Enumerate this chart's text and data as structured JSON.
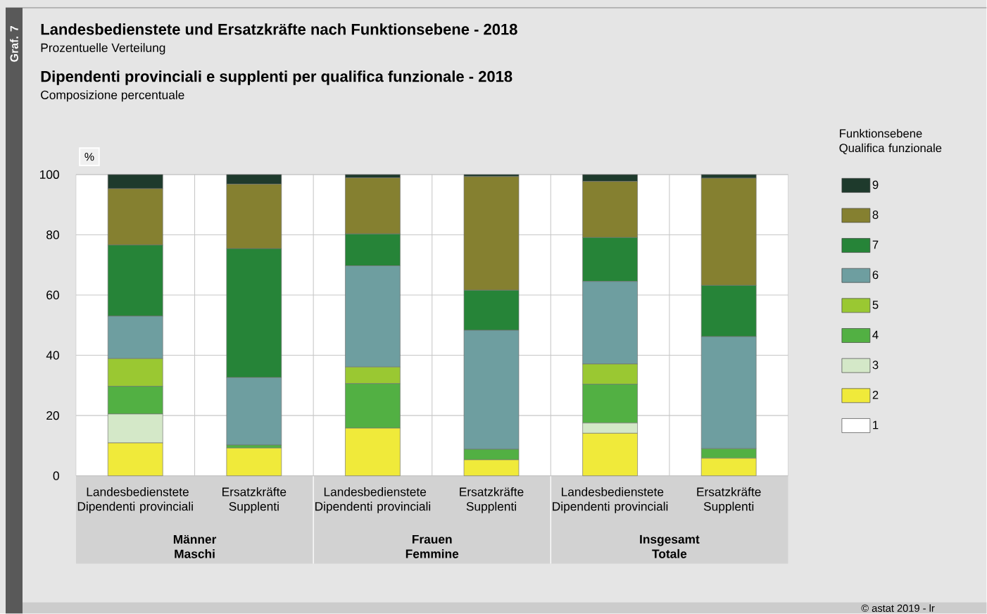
{
  "chart_data": {
    "type": "bar",
    "stacked": true,
    "title": "Landesbedienstete und Ersatzkräfte nach Funktionsebene - 2018",
    "subtitle": "Prozentuelle Verteilung",
    "ylabel": "%",
    "legend_title": "Funktionsebene Qualifica funzionale",
    "annotations": [
      "Dipendenti provinciali e supplenti per qualifica funzionale - 2018",
      "Composizione percentuale",
      "Graf. 7",
      "Männer Maschi",
      "Frauen Femmine",
      "Insgesamt Totale",
      "© astat 2019 - lr"
    ],
    "categories": [
      "Landesbedienstete Dipendenti provinciali",
      "Ersatzkräfte Supplenti",
      "Landesbedienstete Dipendenti provinciali",
      "Ersatzkräfte Supplenti",
      "Landesbedienstete Dipendenti provinciali",
      "Ersatzkräfte Supplenti"
    ],
    "series": [
      {
        "name": "1",
        "color": "#ffffff",
        "values": [
          0,
          0,
          0,
          0,
          0,
          0
        ]
      },
      {
        "name": "2",
        "color": "#f0ea3a",
        "values": [
          10.9,
          9.2,
          15.8,
          5.3,
          14.1,
          5.8
        ]
      },
      {
        "name": "3",
        "color": "#d4e8c8",
        "values": [
          9.6,
          0,
          0,
          0,
          3.4,
          0
        ]
      },
      {
        "name": "4",
        "color": "#52b043",
        "values": [
          9.2,
          1.0,
          14.8,
          3.5,
          12.9,
          3.2
        ]
      },
      {
        "name": "5",
        "color": "#9ac832",
        "values": [
          9.2,
          0,
          5.5,
          0,
          6.7,
          0
        ]
      },
      {
        "name": "6",
        "color": "#6e9ea0",
        "values": [
          14.1,
          22.4,
          33.6,
          39.5,
          27.4,
          37.2
        ]
      },
      {
        "name": "7",
        "color": "#268438",
        "values": [
          23.6,
          42.8,
          10.6,
          13.3,
          14.6,
          17.0
        ]
      },
      {
        "name": "8",
        "color": "#858030",
        "values": [
          18.7,
          21.4,
          18.6,
          37.7,
          18.6,
          35.6
        ]
      },
      {
        "name": "9",
        "color": "#1e3a2c",
        "values": [
          4.7,
          3.2,
          1.1,
          0.7,
          2.3,
          1.2
        ]
      }
    ],
    "ylim": [
      0,
      100
    ],
    "yticks": [
      0,
      20,
      40,
      60,
      80,
      100
    ],
    "grid": true,
    "legend": "right"
  }
}
